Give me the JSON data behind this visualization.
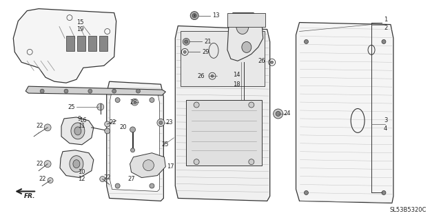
{
  "bg_color": "#ffffff",
  "fig_width": 6.4,
  "fig_height": 3.19,
  "dpi": 100,
  "diagram_code": "SL53B5320C",
  "lc": "#333333",
  "tc": "#222222",
  "lw": 0.7,
  "fs": 6.0
}
